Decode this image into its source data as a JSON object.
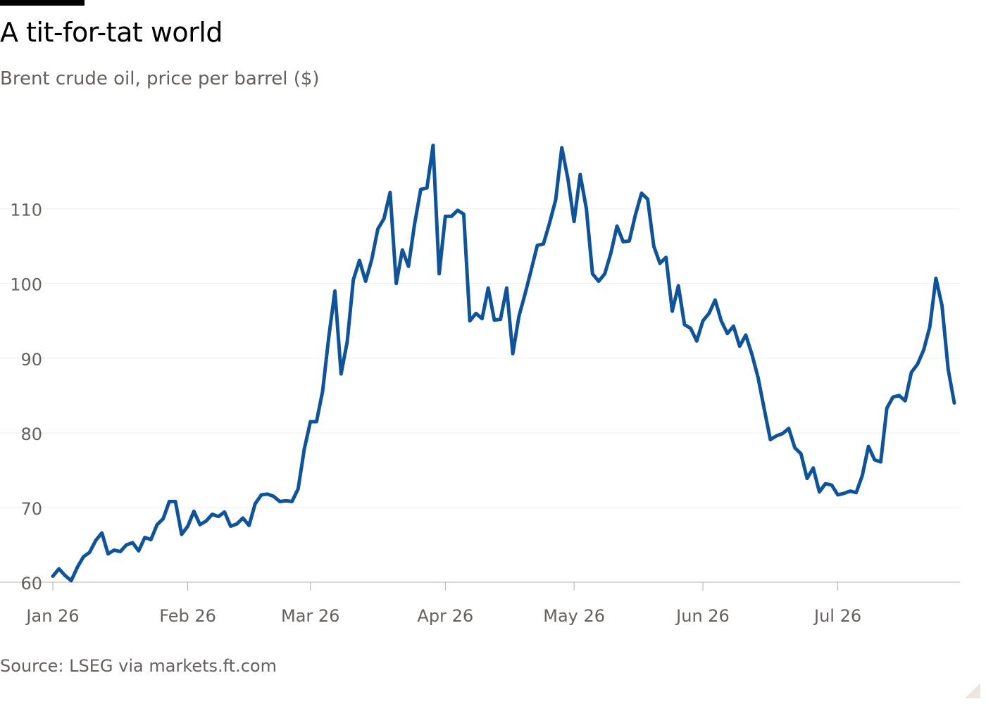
{
  "title": "A tit-for-tat world",
  "subtitle": "Brent crude oil, price per barrel ($)",
  "source": "Source: LSEG via markets.ft.com",
  "colors": {
    "line": "#0f5499",
    "grid": "#eeeeee",
    "axis": "#b3ada8",
    "text": "#66605c"
  },
  "chart_data": {
    "type": "line",
    "title": "A tit-for-tat world",
    "subtitle": "Brent crude oil, price per barrel ($)",
    "xlabel": "",
    "ylabel": "",
    "x_ticks": [
      "Jan 26",
      "Feb 26",
      "Mar 26",
      "Apr 26",
      "May 26",
      "Jun 26",
      "Jul 26"
    ],
    "y_ticks": [
      60,
      70,
      80,
      90,
      100,
      110
    ],
    "ylim": [
      60,
      121
    ],
    "grid": true,
    "legend": "none",
    "series": [
      {
        "values": [
          60.8,
          61.8,
          60.9,
          60.2,
          62.0,
          63.4,
          64.0,
          65.6,
          66.6,
          63.8,
          64.3,
          64.1,
          65.0,
          65.3,
          64.2,
          66.0,
          65.7,
          67.7,
          68.5,
          70.8,
          70.8,
          66.4,
          67.5,
          69.5,
          67.7,
          68.2,
          69.1,
          68.8,
          69.4,
          67.5,
          67.8,
          68.6,
          67.6,
          70.5,
          71.7,
          71.8,
          71.5,
          70.8,
          70.9,
          70.8,
          72.5,
          77.8,
          81.5,
          81.5,
          85.6,
          92.8,
          99.0,
          87.9,
          92.2,
          100.5,
          103.1,
          100.3,
          103.2,
          107.3,
          108.7,
          112.2,
          100.0,
          104.5,
          102.3,
          108.0,
          112.6,
          112.8,
          118.5,
          101.3,
          109.0,
          109.0,
          109.8,
          109.3,
          95.0,
          96.0,
          95.3,
          99.4,
          95.1,
          95.2,
          99.4,
          90.6,
          95.6,
          98.6,
          101.8,
          105.1,
          105.3,
          108.1,
          111.2,
          118.2,
          114.0,
          108.3,
          114.6,
          110.0,
          101.3,
          100.3,
          101.3,
          104.1,
          107.7,
          105.6,
          105.7,
          109.2,
          112.1,
          111.3,
          105.0,
          102.7,
          103.5,
          96.3,
          99.7,
          94.5,
          94.0,
          92.3,
          95.0,
          96.0,
          97.8,
          95.0,
          93.3,
          94.3,
          91.6,
          93.1,
          90.5,
          87.4,
          83.2,
          79.1,
          79.6,
          79.9,
          80.6,
          78.0,
          77.2,
          73.9,
          75.3,
          72.1,
          73.2,
          73.0,
          71.7,
          71.9,
          72.2,
          72.0,
          74.3,
          78.2,
          76.4,
          76.1,
          83.3,
          84.8,
          85.0,
          84.3,
          88.1,
          89.2,
          91.1,
          94.2,
          100.7,
          97.0,
          88.5,
          84.0
        ]
      }
    ]
  }
}
